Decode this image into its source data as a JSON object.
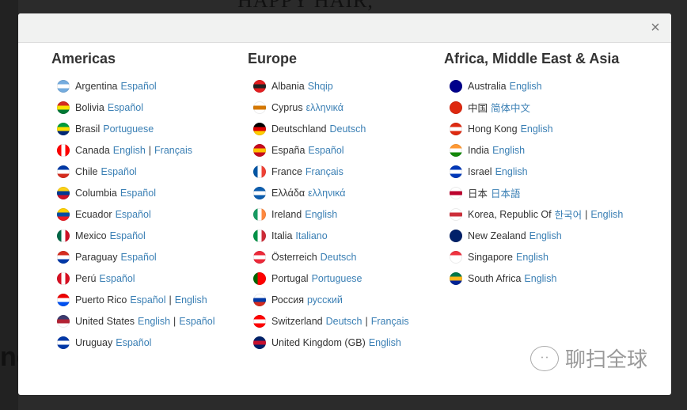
{
  "background": {
    "headline": "HAPPY HAIR,",
    "fragment": "nc"
  },
  "modal": {
    "close_icon": "close-icon",
    "close_label": "×"
  },
  "watermark": {
    "text": "聊扫全球",
    "icon": "wechat-icon"
  },
  "colors": {
    "link": "#3a7fb4",
    "text": "#333333",
    "header_bg": "#f1f2f1"
  },
  "columns": [
    {
      "title": "Americas",
      "items": [
        {
          "country": "Argentina",
          "langs": [
            "Español"
          ],
          "flag": [
            "#74acdf",
            "#ffffff",
            "#74acdf"
          ]
        },
        {
          "country": "Bolivia",
          "langs": [
            "Español"
          ],
          "flag": [
            "#d52b1e",
            "#f9e300",
            "#007934"
          ]
        },
        {
          "country": "Brasil",
          "langs": [
            "Portuguese"
          ],
          "flag": [
            "#009c3b",
            "#ffdf00",
            "#002776"
          ]
        },
        {
          "country": "Canada",
          "langs": [
            "English",
            "Français"
          ],
          "flag": [
            "#ff0000",
            "#ffffff",
            "#ff0000"
          ],
          "vertical": true
        },
        {
          "country": "Chile",
          "langs": [
            "Español"
          ],
          "flag": [
            "#0039a6",
            "#ffffff",
            "#d52b1e"
          ]
        },
        {
          "country": "Columbia",
          "langs": [
            "Español"
          ],
          "flag": [
            "#fcd116",
            "#003893",
            "#ce1126"
          ]
        },
        {
          "country": "Ecuador",
          "langs": [
            "Español"
          ],
          "flag": [
            "#ffd100",
            "#034ea2",
            "#ed1c24"
          ]
        },
        {
          "country": "Mexico",
          "langs": [
            "Español"
          ],
          "flag": [
            "#006847",
            "#ffffff",
            "#ce1126"
          ],
          "vertical": true
        },
        {
          "country": "Paraguay",
          "langs": [
            "Español"
          ],
          "flag": [
            "#d52b1e",
            "#ffffff",
            "#0038a8"
          ]
        },
        {
          "country": "Perú",
          "langs": [
            "Español"
          ],
          "flag": [
            "#d91023",
            "#ffffff",
            "#d91023"
          ],
          "vertical": true
        },
        {
          "country": "Puerto Rico",
          "langs": [
            "Español",
            "English"
          ],
          "flag": [
            "#ed0000",
            "#ffffff",
            "#0050f0"
          ]
        },
        {
          "country": "United States",
          "langs": [
            "English",
            "Español"
          ],
          "flag": [
            "#3c3b6e",
            "#b22234",
            "#ffffff"
          ]
        },
        {
          "country": "Uruguay",
          "langs": [
            "Español"
          ],
          "flag": [
            "#0038a8",
            "#ffffff",
            "#0038a8"
          ]
        }
      ]
    },
    {
      "title": "Europe",
      "items": [
        {
          "country": "Albania",
          "langs": [
            "Shqip"
          ],
          "flag": [
            "#e41e20",
            "#222222",
            "#e41e20"
          ]
        },
        {
          "country": "Cyprus",
          "langs": [
            "ελληνικά"
          ],
          "flag": [
            "#ffffff",
            "#d57800",
            "#ffffff"
          ]
        },
        {
          "country": "Deutschland",
          "langs": [
            "Deutsch"
          ],
          "flag": [
            "#000000",
            "#dd0000",
            "#ffce00"
          ]
        },
        {
          "country": "España",
          "langs": [
            "Español"
          ],
          "flag": [
            "#c60b1e",
            "#ffc400",
            "#c60b1e"
          ]
        },
        {
          "country": "France",
          "langs": [
            "Français"
          ],
          "flag": [
            "#0055a4",
            "#ffffff",
            "#ef4135"
          ],
          "vertical": true
        },
        {
          "country": "Ελλάδα",
          "langs": [
            "ελληνικά"
          ],
          "flag": [
            "#0d5eaf",
            "#ffffff",
            "#0d5eaf"
          ]
        },
        {
          "country": "Ireland",
          "langs": [
            "English"
          ],
          "flag": [
            "#169b62",
            "#ffffff",
            "#ff883e"
          ],
          "vertical": true
        },
        {
          "country": "Italia",
          "langs": [
            "Italiano"
          ],
          "flag": [
            "#009246",
            "#ffffff",
            "#ce2b37"
          ],
          "vertical": true
        },
        {
          "country": "Österreich",
          "langs": [
            "Deutsch"
          ],
          "flag": [
            "#ed2939",
            "#ffffff",
            "#ed2939"
          ]
        },
        {
          "country": "Portugal",
          "langs": [
            "Portuguese"
          ],
          "flag": [
            "#006600",
            "#ff0000",
            "#ff0000"
          ],
          "vertical": true
        },
        {
          "country": "Россия",
          "langs": [
            "русский"
          ],
          "flag": [
            "#ffffff",
            "#0039a6",
            "#d52b1e"
          ]
        },
        {
          "country": "Switzerland",
          "langs": [
            "Deutsch",
            "Français"
          ],
          "flag": [
            "#ff0000",
            "#ffffff",
            "#ff0000"
          ]
        },
        {
          "country": "United Kingdom (GB)",
          "langs": [
            "English"
          ],
          "flag": [
            "#012169",
            "#c8102e",
            "#012169"
          ]
        }
      ]
    },
    {
      "title": "Africa, Middle East & Asia",
      "items": [
        {
          "country": "Australia",
          "langs": [
            "English"
          ],
          "flag": [
            "#00008b",
            "#00008b",
            "#00008b"
          ]
        },
        {
          "country": "中国",
          "langs": [
            "简体中文"
          ],
          "flag": [
            "#de2910",
            "#de2910",
            "#de2910"
          ]
        },
        {
          "country": "Hong Kong",
          "langs": [
            "English"
          ],
          "flag": [
            "#de2910",
            "#ffffff",
            "#de2910"
          ]
        },
        {
          "country": "India",
          "langs": [
            "English"
          ],
          "flag": [
            "#ff9933",
            "#ffffff",
            "#138808"
          ]
        },
        {
          "country": "Israel",
          "langs": [
            "English"
          ],
          "flag": [
            "#0038b8",
            "#ffffff",
            "#0038b8"
          ]
        },
        {
          "country": "日本",
          "langs": [
            "日本語"
          ],
          "flag": [
            "#ffffff",
            "#bc002d",
            "#ffffff"
          ]
        },
        {
          "country": "Korea, Republic Of",
          "langs": [
            "한국어",
            "English"
          ],
          "flag": [
            "#ffffff",
            "#cd2e3a",
            "#ffffff"
          ]
        },
        {
          "country": "New Zealand",
          "langs": [
            "English"
          ],
          "flag": [
            "#012169",
            "#012169",
            "#012169"
          ]
        },
        {
          "country": "Singapore",
          "langs": [
            "English"
          ],
          "flag": [
            "#ef3340",
            "#ffffff",
            "#ffffff"
          ]
        },
        {
          "country": "South Africa",
          "langs": [
            "English"
          ],
          "flag": [
            "#007749",
            "#ffb81c",
            "#002395"
          ]
        }
      ]
    }
  ]
}
